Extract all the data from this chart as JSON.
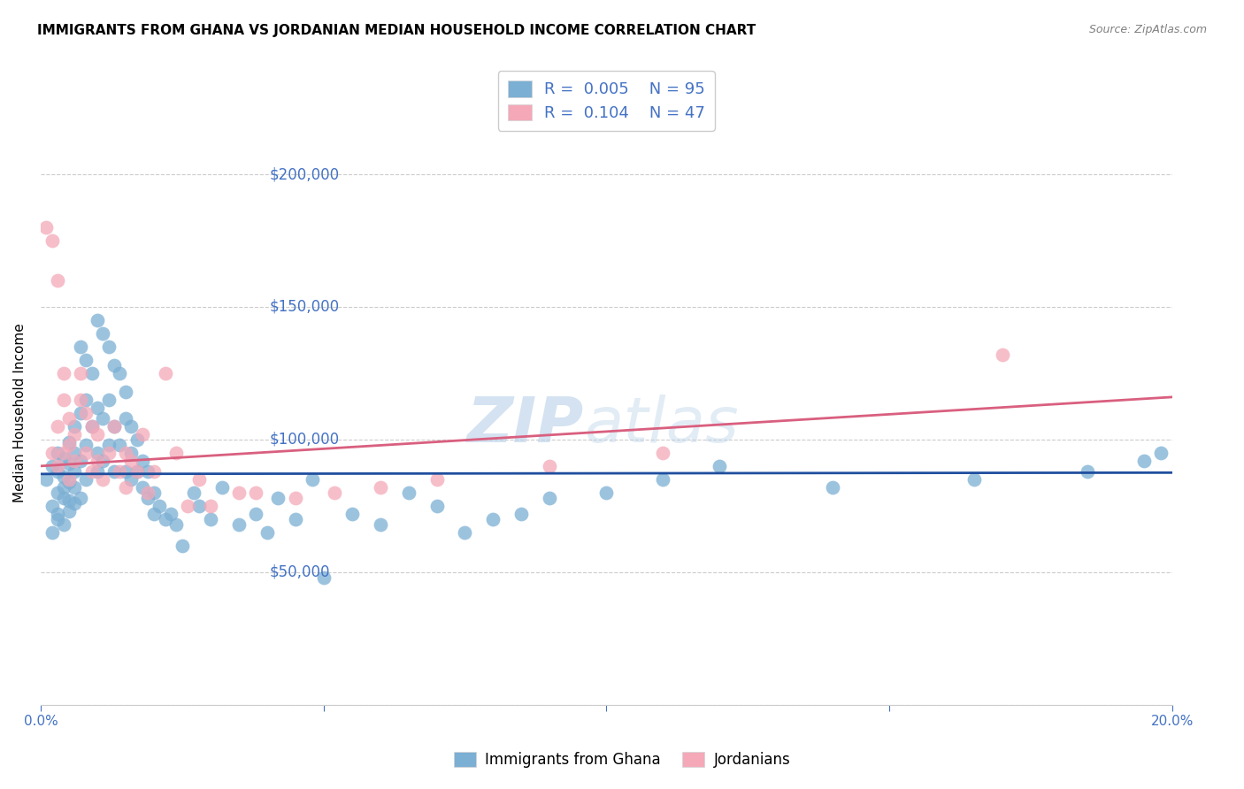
{
  "title": "IMMIGRANTS FROM GHANA VS JORDANIAN MEDIAN HOUSEHOLD INCOME CORRELATION CHART",
  "source": "Source: ZipAtlas.com",
  "ylabel": "Median Household Income",
  "xlim": [
    0,
    0.2
  ],
  "ylim": [
    0,
    220000
  ],
  "yticks": [
    0,
    50000,
    100000,
    150000,
    200000
  ],
  "ytick_labels": [
    "",
    "$50,000",
    "$100,000",
    "$150,000",
    "$200,000"
  ],
  "xticks": [
    0.0,
    0.05,
    0.1,
    0.15,
    0.2
  ],
  "xtick_labels": [
    "0.0%",
    "",
    "",
    "",
    "20.0%"
  ],
  "axis_color": "#4472c4",
  "grid_color": "#cccccc",
  "background_color": "#ffffff",
  "watermark_color": "#b8d0e8",
  "legend_r1": "0.005",
  "legend_n1": "95",
  "legend_r2": "0.104",
  "legend_n2": "47",
  "series1_color": "#7bafd4",
  "series2_color": "#f4a8b8",
  "series1_line_color": "#1f4e9e",
  "series2_line_color": "#d95f7f",
  "legend_label1": "Immigrants from Ghana",
  "legend_label2": "Jordanians",
  "blue_line_y0": 87000,
  "blue_line_y1": 87500,
  "pink_line_y0": 90000,
  "pink_line_y1": 116000,
  "series1_x": [
    0.001,
    0.002,
    0.002,
    0.002,
    0.003,
    0.003,
    0.003,
    0.003,
    0.003,
    0.004,
    0.004,
    0.004,
    0.004,
    0.004,
    0.005,
    0.005,
    0.005,
    0.005,
    0.005,
    0.006,
    0.006,
    0.006,
    0.006,
    0.006,
    0.007,
    0.007,
    0.007,
    0.007,
    0.008,
    0.008,
    0.008,
    0.008,
    0.009,
    0.009,
    0.01,
    0.01,
    0.01,
    0.01,
    0.011,
    0.011,
    0.011,
    0.012,
    0.012,
    0.012,
    0.013,
    0.013,
    0.013,
    0.014,
    0.014,
    0.015,
    0.015,
    0.015,
    0.016,
    0.016,
    0.016,
    0.017,
    0.017,
    0.018,
    0.018,
    0.019,
    0.019,
    0.02,
    0.02,
    0.021,
    0.022,
    0.023,
    0.024,
    0.025,
    0.027,
    0.028,
    0.03,
    0.032,
    0.035,
    0.038,
    0.04,
    0.042,
    0.045,
    0.048,
    0.05,
    0.055,
    0.06,
    0.065,
    0.07,
    0.075,
    0.08,
    0.085,
    0.09,
    0.1,
    0.11,
    0.12,
    0.14,
    0.165,
    0.185,
    0.195,
    0.198
  ],
  "series1_y": [
    85000,
    75000,
    90000,
    65000,
    80000,
    70000,
    95000,
    88000,
    72000,
    82000,
    78000,
    93000,
    68000,
    86000,
    91000,
    77000,
    84000,
    73000,
    99000,
    105000,
    88000,
    76000,
    82000,
    95000,
    135000,
    110000,
    92000,
    78000,
    130000,
    115000,
    98000,
    85000,
    125000,
    105000,
    145000,
    95000,
    112000,
    88000,
    140000,
    108000,
    92000,
    135000,
    115000,
    98000,
    128000,
    105000,
    88000,
    125000,
    98000,
    118000,
    108000,
    88000,
    105000,
    95000,
    85000,
    100000,
    88000,
    82000,
    92000,
    78000,
    88000,
    80000,
    72000,
    75000,
    70000,
    72000,
    68000,
    60000,
    80000,
    75000,
    70000,
    82000,
    68000,
    72000,
    65000,
    78000,
    70000,
    85000,
    48000,
    72000,
    68000,
    80000,
    75000,
    65000,
    70000,
    72000,
    78000,
    80000,
    85000,
    90000,
    82000,
    85000,
    88000,
    92000,
    95000
  ],
  "series2_x": [
    0.001,
    0.002,
    0.002,
    0.003,
    0.003,
    0.003,
    0.004,
    0.004,
    0.004,
    0.005,
    0.005,
    0.005,
    0.006,
    0.006,
    0.007,
    0.007,
    0.008,
    0.008,
    0.009,
    0.009,
    0.01,
    0.01,
    0.011,
    0.012,
    0.013,
    0.014,
    0.015,
    0.015,
    0.016,
    0.017,
    0.018,
    0.019,
    0.02,
    0.022,
    0.024,
    0.026,
    0.028,
    0.03,
    0.035,
    0.038,
    0.045,
    0.052,
    0.06,
    0.07,
    0.09,
    0.11,
    0.17
  ],
  "series2_y": [
    180000,
    175000,
    95000,
    160000,
    105000,
    90000,
    125000,
    115000,
    95000,
    108000,
    98000,
    85000,
    102000,
    92000,
    125000,
    115000,
    110000,
    95000,
    105000,
    88000,
    102000,
    92000,
    85000,
    95000,
    105000,
    88000,
    82000,
    95000,
    92000,
    88000,
    102000,
    80000,
    88000,
    125000,
    95000,
    75000,
    85000,
    75000,
    80000,
    80000,
    78000,
    80000,
    82000,
    85000,
    90000,
    95000,
    132000
  ]
}
